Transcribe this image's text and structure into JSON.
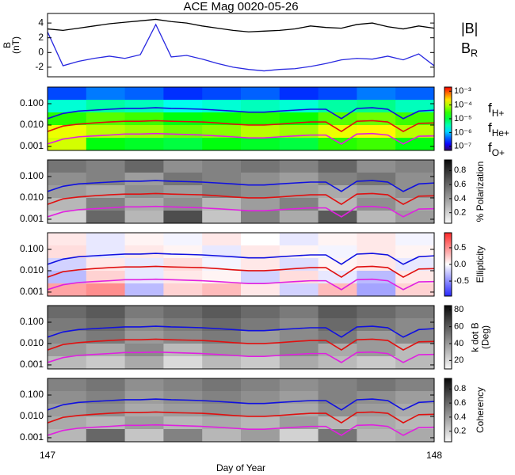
{
  "chart_data": [
    {
      "type": "line",
      "title": "ACE Mag 0020-05-26",
      "ylabel": [
        "B",
        "(nT)"
      ],
      "x": [
        147.0,
        147.04,
        147.08,
        147.12,
        147.16,
        147.2,
        147.24,
        147.28,
        147.32,
        147.36,
        147.4,
        147.44,
        147.48,
        147.52,
        147.56,
        147.6,
        147.64,
        147.68,
        147.72,
        147.76,
        147.8,
        147.84,
        147.88,
        147.92,
        147.96,
        148.0
      ],
      "series": [
        {
          "name": "|B|",
          "color": "#000000",
          "values": [
            3.2,
            3.0,
            3.3,
            3.6,
            3.9,
            4.1,
            4.3,
            4.5,
            4.2,
            4.0,
            3.6,
            3.3,
            3.0,
            2.8,
            2.9,
            3.0,
            3.2,
            3.6,
            3.4,
            3.3,
            3.8,
            4.0,
            3.5,
            3.2,
            3.6,
            3.3
          ]
        },
        {
          "name": "BR",
          "color": "#2828e0",
          "values": [
            2.8,
            -1.8,
            -1.2,
            -0.8,
            -0.5,
            -0.8,
            -0.3,
            3.8,
            -0.6,
            -0.4,
            -0.9,
            -1.5,
            -2.0,
            -2.3,
            -2.5,
            -2.3,
            -2.2,
            -1.9,
            -1.5,
            -1.0,
            -0.8,
            -0.9,
            -0.5,
            -1.0,
            -0.2,
            -1.8
          ]
        }
      ],
      "xlim": [
        147,
        148
      ],
      "ylim": [
        -3.3,
        5.3
      ],
      "yticks": [
        -2,
        0,
        2,
        4
      ]
    },
    {
      "type": "heatmap",
      "colormap": "rainbow",
      "xlim": [
        147,
        148
      ],
      "ylim": [
        0.00065,
        0.6
      ],
      "yscale": "log",
      "yticks": [
        {
          "value": 0.1,
          "label": "0.100"
        },
        {
          "value": 0.01,
          "label": "0.010"
        },
        {
          "value": 0.001,
          "label": "0.001"
        }
      ],
      "zlim": [
        -7.3,
        -2.7
      ],
      "zticks": [
        {
          "value": -3,
          "label": "10⁻³"
        },
        {
          "value": -4,
          "label": "10⁻⁴"
        },
        {
          "value": -5,
          "label": "10⁻⁵"
        },
        {
          "value": -6,
          "label": "10⁻⁶"
        },
        {
          "value": -7,
          "label": "10⁻⁷"
        }
      ],
      "z": [
        [
          -6.5,
          -6.3,
          -6.4,
          -6.6,
          -6.5,
          -6.4,
          -6.6,
          -6.5,
          -6.3,
          -6.4
        ],
        [
          -5.6,
          -5.4,
          -5.5,
          -5.7,
          -5.6,
          -5.5,
          -5.6,
          -5.4,
          -5.3,
          -5.5
        ],
        [
          -4.6,
          -4.4,
          -4.5,
          -4.8,
          -4.7,
          -4.6,
          -4.7,
          -4.4,
          -4.3,
          -4.5
        ],
        [
          -3.8,
          -4.0,
          -4.1,
          -4.3,
          -4.2,
          -4.0,
          -4.1,
          -3.8,
          -3.7,
          -4.0
        ],
        [
          -3.9,
          -4.8,
          -4.9,
          -5.0,
          -4.8,
          -4.9,
          -5.0,
          -4.6,
          -4.5,
          -4.8
        ]
      ],
      "x": [
        147.0,
        147.04,
        147.08,
        147.12,
        147.16,
        147.2,
        147.24,
        147.28,
        147.32,
        147.36,
        147.4,
        147.44,
        147.48,
        147.52,
        147.56,
        147.6,
        147.64,
        147.68,
        147.72,
        147.76,
        147.8,
        147.84,
        147.88,
        147.92,
        147.96,
        148.0
      ],
      "series": [
        {
          "name": "fH+",
          "color": "#1010e0",
          "values": [
            0.02,
            0.035,
            0.045,
            0.05,
            0.055,
            0.06,
            0.06,
            0.065,
            0.06,
            0.058,
            0.055,
            0.05,
            0.045,
            0.04,
            0.04,
            0.045,
            0.05,
            0.055,
            0.055,
            0.02,
            0.06,
            0.065,
            0.055,
            0.02,
            0.045,
            0.05
          ]
        },
        {
          "name": "fHe+",
          "color": "#e01010",
          "values": [
            0.005,
            0.009,
            0.011,
            0.0125,
            0.014,
            0.015,
            0.015,
            0.016,
            0.015,
            0.0145,
            0.014,
            0.0125,
            0.011,
            0.01,
            0.01,
            0.011,
            0.0125,
            0.014,
            0.014,
            0.005,
            0.015,
            0.016,
            0.014,
            0.005,
            0.012,
            0.0125
          ]
        },
        {
          "name": "fO+",
          "color": "#e020e0",
          "values": [
            0.0013,
            0.0022,
            0.0028,
            0.0031,
            0.0034,
            0.0038,
            0.0038,
            0.004,
            0.0038,
            0.0036,
            0.0034,
            0.0031,
            0.0028,
            0.0025,
            0.0025,
            0.0028,
            0.0031,
            0.0034,
            0.0034,
            0.0013,
            0.0038,
            0.004,
            0.0034,
            0.0013,
            0.003,
            0.0031
          ]
        }
      ]
    },
    {
      "type": "heatmap",
      "colormap": "gray",
      "xlim": [
        147,
        148
      ],
      "ylim": [
        0.00065,
        0.6
      ],
      "yscale": "log",
      "yticks": [
        {
          "value": 0.1,
          "label": "0.100"
        },
        {
          "value": 0.01,
          "label": "0.010"
        },
        {
          "value": 0.001,
          "label": "0.001"
        }
      ],
      "zlim": [
        0.05,
        0.95
      ],
      "zticks": [
        0.2,
        0.4,
        0.6,
        0.8
      ],
      "zlabel": [
        "% Polarization"
      ],
      "z": [
        [
          0.55,
          0.5,
          0.6,
          0.45,
          0.5,
          0.55,
          0.5,
          0.6,
          0.45,
          0.5
        ],
        [
          0.45,
          0.5,
          0.4,
          0.55,
          0.5,
          0.45,
          0.4,
          0.5,
          0.55,
          0.45
        ],
        [
          0.4,
          0.35,
          0.45,
          0.4,
          0.5,
          0.45,
          0.4,
          0.35,
          0.4,
          0.45
        ],
        [
          0.3,
          0.5,
          0.35,
          0.45,
          0.3,
          0.4,
          0.5,
          0.3,
          0.45,
          0.35
        ],
        [
          0.2,
          0.6,
          0.3,
          0.7,
          0.25,
          0.5,
          0.35,
          0.65,
          0.3,
          0.4
        ]
      ]
    },
    {
      "type": "heatmap",
      "colormap": "bwr",
      "xlim": [
        147,
        148
      ],
      "ylim": [
        0.00065,
        0.6
      ],
      "yscale": "log",
      "yticks": [
        {
          "value": 0.1,
          "label": "0.100"
        },
        {
          "value": 0.01,
          "label": "0.010"
        },
        {
          "value": 0.001,
          "label": "0.001"
        }
      ],
      "zlim": [
        -0.95,
        0.95
      ],
      "zticks": [
        -0.5,
        {
          "value": 0,
          "label": "0.0"
        },
        0.5
      ],
      "zlabel": [
        "Ellipticity"
      ],
      "z": [
        [
          0.1,
          -0.1,
          0.05,
          -0.05,
          0.1,
          0,
          -0.1,
          0.05,
          0.1,
          -0.05
        ],
        [
          0.15,
          -0.1,
          0.1,
          0.05,
          -0.1,
          0.1,
          0.05,
          -0.05,
          0.1,
          0.05
        ],
        [
          -0.2,
          0.1,
          -0.1,
          0.15,
          -0.05,
          0.1,
          -0.15,
          0.05,
          0.1,
          -0.1
        ],
        [
          -0.3,
          0.2,
          -0.1,
          0.1,
          0.05,
          -0.2,
          0.15,
          -0.1,
          -0.3,
          0.1
        ],
        [
          0.4,
          0.5,
          -0.3,
          0.2,
          0.3,
          0.1,
          -0.2,
          0.3,
          -0.4,
          0.2
        ]
      ]
    },
    {
      "type": "heatmap",
      "colormap": "gray",
      "xlim": [
        147,
        148
      ],
      "ylim": [
        0.00065,
        0.6
      ],
      "yscale": "log",
      "yticks": [
        {
          "value": 0.1,
          "label": "0.100"
        },
        {
          "value": 0.01,
          "label": "0.010"
        },
        {
          "value": 0.001,
          "label": "0.001"
        }
      ],
      "zlim": [
        10,
        85
      ],
      "zticks": [
        20,
        40,
        60,
        80
      ],
      "zlabel": [
        "k dot B",
        "(Deg)"
      ],
      "z": [
        [
          55,
          60,
          50,
          55,
          60,
          55,
          50,
          60,
          55,
          50
        ],
        [
          50,
          55,
          45,
          50,
          55,
          50,
          45,
          55,
          50,
          45
        ],
        [
          45,
          50,
          40,
          45,
          50,
          40,
          45,
          50,
          40,
          45
        ],
        [
          40,
          35,
          45,
          30,
          40,
          35,
          45,
          35,
          40,
          30
        ],
        [
          30,
          25,
          35,
          20,
          30,
          25,
          35,
          30,
          25,
          30
        ]
      ]
    },
    {
      "type": "heatmap",
      "colormap": "gray",
      "xlim": [
        147,
        148
      ],
      "ylim": [
        0.00065,
        0.6
      ],
      "yscale": "log",
      "yticks": [
        {
          "value": 0.1,
          "label": "0.100"
        },
        {
          "value": 0.01,
          "label": "0.010"
        },
        {
          "value": 0.001,
          "label": "0.001"
        }
      ],
      "zlim": [
        0.05,
        0.95
      ],
      "zticks": [
        0.2,
        0.4,
        0.6,
        0.8
      ],
      "zlabel": [
        "Coherency"
      ],
      "z": [
        [
          0.5,
          0.55,
          0.45,
          0.5,
          0.55,
          0.5,
          0.45,
          0.5,
          0.55,
          0.5
        ],
        [
          0.45,
          0.5,
          0.4,
          0.45,
          0.5,
          0.45,
          0.4,
          0.5,
          0.45,
          0.4
        ],
        [
          0.4,
          0.45,
          0.35,
          0.4,
          0.45,
          0.4,
          0.35,
          0.45,
          0.4,
          0.35
        ],
        [
          0.35,
          0.3,
          0.4,
          0.3,
          0.35,
          0.3,
          0.4,
          0.3,
          0.35,
          0.3
        ],
        [
          0.3,
          0.6,
          0.25,
          0.5,
          0.3,
          0.4,
          0.2,
          0.55,
          0.3,
          0.35
        ]
      ],
      "xticks": [
        147,
        148
      ],
      "xlabel": "Day of Year"
    }
  ]
}
